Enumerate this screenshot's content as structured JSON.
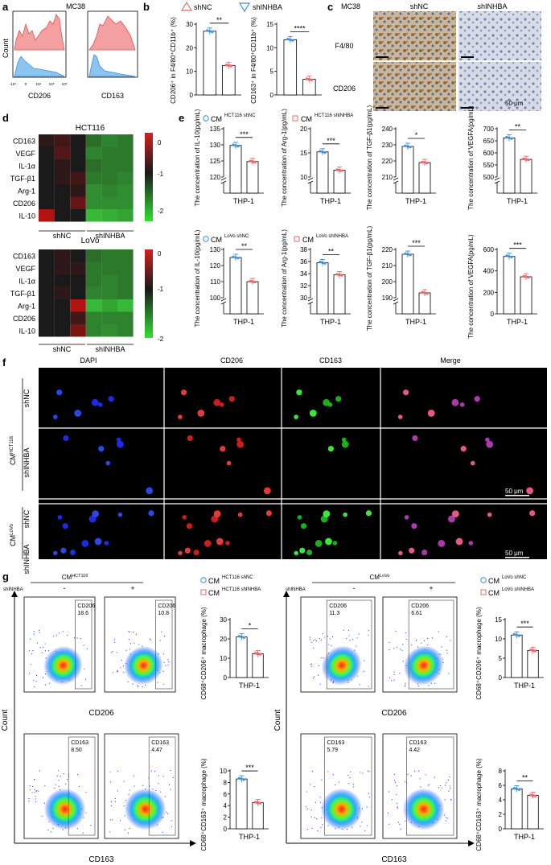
{
  "panels": {
    "a": {
      "letter": "a",
      "title": "MC38",
      "xlabels": [
        "CD206",
        "CD163"
      ],
      "ylabel": "Count",
      "ticks": [
        "-10⁴",
        "0",
        "10⁴",
        "10⁵",
        "10⁶"
      ]
    },
    "b": {
      "letter": "b",
      "legend": [
        "shNC",
        "shINHBA"
      ],
      "ylabels": [
        "CD206⁺ in F4/80⁺CD11b⁺ (%)",
        "CD163⁺ in F4/80⁺CD11b⁺ (%)"
      ],
      "sig": [
        "**",
        "****"
      ]
    },
    "c": {
      "letter": "c",
      "title": "MC38",
      "cols": [
        "shNC",
        "shINHBA"
      ],
      "rows": [
        "F4/80",
        "CD206"
      ],
      "scale": "50 μm"
    },
    "d": {
      "letter": "d",
      "groups": [
        "shNC",
        "shINHBA"
      ],
      "colorbar": [
        "0",
        "-1",
        "-2"
      ]
    },
    "e": {
      "letter": "e",
      "legend_top": [
        "CM",
        "HCT116 shNC",
        "CM",
        "HCT116 shINHBA"
      ],
      "legend_bot": [
        "CM",
        "LoVo shNC",
        "CM",
        "LoVo shINHBA"
      ],
      "xlabel": "THP-1"
    },
    "f": {
      "letter": "f",
      "cols": [
        "DAPI",
        "CD206",
        "CD163",
        "Merge"
      ],
      "row_groups": [
        {
          "cm": "CM",
          "sup": "HCT116"
        },
        {
          "cm": "CM",
          "sup": "LoVo"
        }
      ],
      "row_labels": [
        "shNC",
        "shINHBA",
        "shNC",
        "shINHBA"
      ],
      "scale": "50 μm"
    },
    "g": {
      "letter": "g",
      "shinhba": "shINHBA",
      "minus": "-",
      "plus": "+",
      "left_title": [
        "CM",
        "HCT116"
      ],
      "right_title": [
        "CM",
        "LoVo"
      ],
      "xlabels": [
        "CD206",
        "CD163"
      ],
      "ylabel": "Count",
      "xlabel": "THP-1",
      "gates": {
        "l206": [
          "CD206",
          "18.6",
          "CD206",
          "10.8"
        ],
        "l163": [
          "CD163",
          "8.50",
          "CD163",
          "4.47"
        ],
        "r206": [
          "CD206",
          "11.3",
          "CD206",
          "6.61"
        ],
        "r163": [
          "CD163",
          "5.79",
          "CD163",
          "4.42"
        ]
      },
      "bar_ylabels": [
        "CD68⁺CD206⁺ macrophage (%)",
        "CD68⁺CD163⁺ macrophage (%)"
      ],
      "legend_left": [
        "CM",
        "HCT116 shNC",
        "CM",
        "HCT116 shINHBA"
      ],
      "legend_right": [
        "CM",
        "LoVo shNC",
        "CM",
        "LoVo shINHBA"
      ]
    }
  },
  "colors": {
    "red": "#e86a6a",
    "blue": "#3f8fdc",
    "pink": "#f2a0a0",
    "lightblue": "#8cc4f0",
    "heat_red": "#d42020",
    "heat_green": "#30e030"
  },
  "chart_data": [
    {
      "type": "bar",
      "panel": "b-left",
      "categories": [
        "shNC",
        "shINHBA"
      ],
      "values": [
        27,
        12.5
      ],
      "ylim": [
        0,
        30
      ],
      "yticks": [
        0,
        10,
        20,
        30
      ],
      "significance": "**"
    },
    {
      "type": "bar",
      "panel": "b-right",
      "categories": [
        "shNC",
        "shINHBA"
      ],
      "values": [
        11.7,
        3.3
      ],
      "ylim": [
        0,
        15
      ],
      "yticks": [
        0,
        5,
        10,
        15
      ],
      "significance": "****"
    },
    {
      "type": "heatmap",
      "panel": "d-HCT116",
      "title": "HCT116",
      "rows": [
        "CD163",
        "VEGF",
        "IL-1α",
        "TGF-β1",
        "Arg-1",
        "CD206",
        "IL-10"
      ],
      "columns": [
        "shNC",
        "shNC",
        "shNC",
        "shINHBA",
        "shINHBA",
        "shINHBA"
      ],
      "values": [
        [
          0.1,
          0.2,
          0.0,
          -0.8,
          -1.0,
          -0.9
        ],
        [
          0.0,
          0.3,
          0.0,
          -1.0,
          -0.9,
          -0.9
        ],
        [
          0.0,
          0.1,
          0.0,
          -0.8,
          -0.9,
          -0.9
        ],
        [
          0.0,
          0.1,
          0.2,
          -0.9,
          -0.9,
          -1.0
        ],
        [
          0.0,
          0.0,
          0.1,
          -1.1,
          -1.0,
          -1.1
        ],
        [
          0.0,
          0.0,
          0.4,
          -1.1,
          -1.1,
          -1.1
        ],
        [
          0.8,
          0.0,
          0.0,
          -1.5,
          -1.4,
          -1.3
        ]
      ],
      "colorbar": [
        -2,
        0
      ]
    },
    {
      "type": "heatmap",
      "panel": "d-LoVo",
      "title": "LoVo",
      "rows": [
        "CD163",
        "VEGF",
        "IL-1α",
        "TGF-β1",
        "Arg-1",
        "CD206",
        "IL-10"
      ],
      "columns": [
        "shNC",
        "shNC",
        "shNC",
        "shINHBA",
        "shINHBA",
        "shINHBA"
      ],
      "values": [
        [
          0.0,
          0.1,
          0.0,
          -0.8,
          -0.9,
          -0.9
        ],
        [
          0.0,
          0.1,
          0.1,
          -0.9,
          -0.9,
          -0.9
        ],
        [
          0.0,
          0.0,
          0.0,
          -0.9,
          -1.0,
          -0.9
        ],
        [
          0.0,
          0.1,
          0.0,
          -1.0,
          -1.0,
          -0.9
        ],
        [
          0.0,
          0.0,
          0.8,
          -1.5,
          -1.3,
          -1.5
        ],
        [
          0.0,
          0.0,
          0.2,
          -1.0,
          -1.0,
          -1.0
        ],
        [
          0.0,
          0.0,
          0.5,
          -1.0,
          -1.1,
          -1.0
        ]
      ],
      "colorbar": [
        -2,
        0
      ]
    },
    {
      "type": "bar",
      "panel": "e-HCT116-IL-10",
      "ylabel": "The concentration of IL-10(pg/mL)",
      "categories": [
        "CM HCT116 shNC",
        "CM HCT116 shINHBA"
      ],
      "values": [
        129.8,
        124.8
      ],
      "yticks": [
        120,
        125,
        130,
        135
      ],
      "ylim": [
        120,
        135
      ],
      "broken_axis": true,
      "significance": "***"
    },
    {
      "type": "bar",
      "panel": "e-HCT116-Arg-1",
      "ylabel": "The concentration of Arg-1(pg/mL)",
      "categories": [
        "CM HCT116 shNC",
        "CM HCT116 shINHBA"
      ],
      "values": [
        15.2,
        11.4
      ],
      "yticks": [
        10,
        15,
        20
      ],
      "ylim": [
        10,
        20
      ],
      "broken_axis": true,
      "significance": "***"
    },
    {
      "type": "bar",
      "panel": "e-HCT116-TGF-b1",
      "ylabel": "The concentration of TGF-β1(pg/mL)",
      "categories": [
        "CM HCT116 shNC",
        "CM HCT116 shINHBA"
      ],
      "values": [
        229,
        219
      ],
      "yticks": [
        210,
        220,
        230,
        240
      ],
      "ylim": [
        210,
        240
      ],
      "broken_axis": true,
      "significance": "*"
    },
    {
      "type": "bar",
      "panel": "e-HCT116-VEGFA",
      "ylabel": "The concentration of VEGFA(pg/mL)",
      "categories": [
        "CM HCT116 shNC",
        "CM HCT116 shINHBA"
      ],
      "values": [
        662,
        573
      ],
      "yticks": [
        500,
        550,
        600,
        650,
        700
      ],
      "ylim": [
        500,
        700
      ],
      "broken_axis": true,
      "significance": "**"
    },
    {
      "type": "bar",
      "panel": "e-LoVo-IL-10",
      "ylabel": "The concentration of IL-10(pg/mL)",
      "categories": [
        "CM LoVo shNC",
        "CM LoVo shINHBA"
      ],
      "values": [
        125,
        110
      ],
      "yticks": [
        100,
        110,
        120,
        130
      ],
      "ylim": [
        100,
        130
      ],
      "broken_axis": true,
      "significance": "**"
    },
    {
      "type": "bar",
      "panel": "e-LoVo-Arg-1",
      "ylabel": "The concentration of Arg-1(pg/mL)",
      "categories": [
        "CM LoVo shNC",
        "CM LoVo shINHBA"
      ],
      "values": [
        35.8,
        33.8
      ],
      "yticks": [
        30,
        32,
        34,
        36,
        38
      ],
      "ylim": [
        30,
        38
      ],
      "broken_axis": true,
      "significance": "**"
    },
    {
      "type": "bar",
      "panel": "e-LoVo-TGF-b1",
      "ylabel": "The concentration of TGF-β1(pg/mL)",
      "categories": [
        "CM LoVo shNC",
        "CM LoVo shINHBA"
      ],
      "values": [
        217,
        193
      ],
      "yticks": [
        190,
        200,
        210,
        220
      ],
      "ylim": [
        190,
        220
      ],
      "broken_axis": true,
      "significance": "***"
    },
    {
      "type": "bar",
      "panel": "e-LoVo-VEGFA",
      "ylabel": "The concentration of VEGFA(pg/mL)",
      "categories": [
        "CM LoVo shNC",
        "CM LoVo shINHBA"
      ],
      "values": [
        535,
        345
      ],
      "yticks": [
        0,
        200,
        400,
        600
      ],
      "ylim": [
        0,
        600
      ],
      "significance": "***"
    },
    {
      "type": "bar",
      "panel": "g-HCT116-CD206",
      "ylabel": "CD68⁺CD206⁺ macrophage (%)",
      "categories": [
        "CM HCT116 shNC",
        "CM HCT116 shINHBA"
      ],
      "values": [
        21,
        12.3
      ],
      "yticks": [
        0,
        10,
        20,
        30
      ],
      "ylim": [
        0,
        30
      ],
      "significance": "*"
    },
    {
      "type": "bar",
      "panel": "g-HCT116-CD163",
      "ylabel": "CD68⁺CD163⁺ macrophage (%)",
      "categories": [
        "CM HCT116 shNC",
        "CM HCT116 shINHBA"
      ],
      "values": [
        8.6,
        4.5
      ],
      "yticks": [
        0,
        2,
        4,
        6,
        8,
        10
      ],
      "ylim": [
        0,
        10
      ],
      "significance": "***"
    },
    {
      "type": "bar",
      "panel": "g-LoVo-CD206",
      "ylabel": "CD68⁺CD206⁺ macrophage (%)",
      "categories": [
        "CM LoVo shNC",
        "CM LoVo shINHBA"
      ],
      "values": [
        11,
        7
      ],
      "yticks": [
        0,
        5,
        10,
        15
      ],
      "ylim": [
        0,
        15
      ],
      "significance": "***"
    },
    {
      "type": "bar",
      "panel": "g-LoVo-CD163",
      "ylabel": "CD68⁺CD163⁺ macrophage (%)",
      "categories": [
        "CM LoVo shNC",
        "CM LoVo shINHBA"
      ],
      "values": [
        5.5,
        4.6
      ],
      "yticks": [
        0,
        2,
        4,
        6,
        8
      ],
      "ylim": [
        0,
        8
      ],
      "significance": "**"
    }
  ]
}
